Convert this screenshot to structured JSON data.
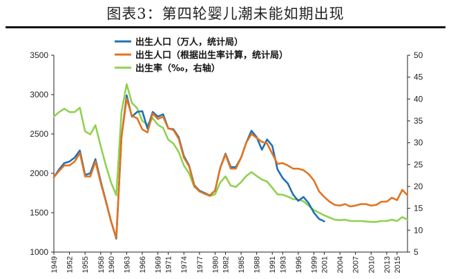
{
  "title": "图表3：第四轮婴儿潮未能如期出现",
  "chart_data": {
    "type": "line",
    "title": "图表3：第四轮婴儿潮未能如期出现",
    "xlabel": "",
    "ylabel_left": "",
    "ylabel_right": "",
    "ylim_left": [
      1000,
      3500
    ],
    "ylim_right": [
      5,
      50
    ],
    "xlim": [
      1949,
      2017
    ],
    "left_ticks": [
      1000,
      1500,
      2000,
      2500,
      3000,
      3500
    ],
    "right_ticks": [
      5,
      10,
      15,
      20,
      25,
      30,
      35,
      40,
      45,
      50
    ],
    "x_ticks": [
      1949,
      1952,
      1955,
      1958,
      1960,
      1963,
      1966,
      1969,
      1971,
      1974,
      1977,
      1980,
      1982,
      1985,
      1988,
      1991,
      1993,
      1996,
      1999,
      2001,
      2004,
      2007,
      2010,
      2013,
      2015
    ],
    "series": [
      {
        "name": "出生人口（万人，统计局）",
        "axis": "left",
        "color": "#1f6fb5",
        "x": [
          1949,
          1950,
          1951,
          1952,
          1953,
          1954,
          1955,
          1956,
          1957,
          1958,
          1959,
          1960,
          1961,
          1962,
          1963,
          1964,
          1965,
          1966,
          1967,
          1968,
          1969,
          1970,
          1971,
          1972,
          1973,
          1974,
          1975,
          1976,
          1977,
          1978,
          1979,
          1980,
          1981,
          1982,
          1983,
          1984,
          1985,
          1986,
          1987,
          1988,
          1989,
          1990,
          1991,
          1992,
          1993,
          1994,
          1995,
          1996,
          1997,
          1998,
          1999,
          2000,
          2001
        ],
        "values": [
          1950,
          2050,
          2130,
          2150,
          2200,
          2290,
          1980,
          2000,
          2180,
          1900,
          1650,
          1390,
          1170,
          2460,
          2990,
          2720,
          2780,
          2790,
          2570,
          2780,
          2720,
          2750,
          2570,
          2560,
          2460,
          2220,
          2100,
          1850,
          1780,
          1750,
          1720,
          1780,
          2070,
          2250,
          2080,
          2080,
          2200,
          2390,
          2540,
          2460,
          2300,
          2430,
          2350,
          2050,
          1940,
          1870,
          1730,
          1650,
          1700,
          1620,
          1500,
          1420,
          1390
        ]
      },
      {
        "name": "出生人口（根据出生率计算，统计局）",
        "axis": "left",
        "color": "#e2731e",
        "x": [
          1949,
          1950,
          1951,
          1952,
          1953,
          1954,
          1955,
          1956,
          1957,
          1958,
          1959,
          1960,
          1961,
          1962,
          1963,
          1964,
          1965,
          1966,
          1967,
          1968,
          1969,
          1970,
          1971,
          1972,
          1973,
          1974,
          1975,
          1976,
          1977,
          1978,
          1979,
          1980,
          1981,
          1982,
          1983,
          1984,
          1985,
          1986,
          1987,
          1988,
          1989,
          1990,
          1991,
          1992,
          1993,
          1994,
          1995,
          1996,
          1997,
          1998,
          1999,
          2000,
          2001,
          2002,
          2003,
          2004,
          2005,
          2006,
          2007,
          2008,
          2009,
          2010,
          2011,
          2012,
          2013,
          2014,
          2015,
          2016,
          2017
        ],
        "values": [
          1950,
          2030,
          2100,
          2100,
          2150,
          2260,
          1960,
          1960,
          2150,
          1880,
          1640,
          1390,
          1180,
          2460,
          2950,
          2730,
          2700,
          2560,
          2520,
          2760,
          2690,
          2720,
          2570,
          2550,
          2440,
          2200,
          2090,
          1840,
          1770,
          1740,
          1720,
          1780,
          2070,
          2240,
          2060,
          2060,
          2200,
          2390,
          2500,
          2450,
          2400,
          2380,
          2250,
          2120,
          2130,
          2100,
          2060,
          2060,
          2040,
          1990,
          1910,
          1770,
          1700,
          1640,
          1600,
          1590,
          1610,
          1580,
          1590,
          1610,
          1610,
          1590,
          1600,
          1640,
          1640,
          1690,
          1660,
          1790,
          1720
        ]
      },
      {
        "name": "出生率（‰，右轴）",
        "axis": "right",
        "color": "#8fd14f",
        "x": [
          1949,
          1950,
          1951,
          1952,
          1953,
          1954,
          1955,
          1956,
          1957,
          1958,
          1959,
          1960,
          1961,
          1962,
          1963,
          1964,
          1965,
          1966,
          1967,
          1968,
          1969,
          1970,
          1971,
          1972,
          1973,
          1974,
          1975,
          1976,
          1977,
          1978,
          1979,
          1980,
          1981,
          1982,
          1983,
          1984,
          1985,
          1986,
          1987,
          1988,
          1989,
          1990,
          1991,
          1992,
          1993,
          1994,
          1995,
          1996,
          1997,
          1998,
          1999,
          2000,
          2001,
          2002,
          2003,
          2004,
          2005,
          2006,
          2007,
          2008,
          2009,
          2010,
          2011,
          2012,
          2013,
          2014,
          2015,
          2016,
          2017
        ],
        "values": [
          36,
          37,
          37.8,
          37,
          37,
          38,
          32.6,
          31.9,
          34,
          29.2,
          24.8,
          20.9,
          18,
          37,
          43.4,
          39.1,
          37.9,
          35,
          34.1,
          35.6,
          34.1,
          33.4,
          30.7,
          29.8,
          27.9,
          24.8,
          23,
          19.9,
          19,
          18.3,
          17.8,
          18.2,
          20.9,
          22.3,
          20.2,
          19.9,
          21,
          22.4,
          23.3,
          22.4,
          21.6,
          21.1,
          19.7,
          18.2,
          18.1,
          17.7,
          17.1,
          17,
          16.6,
          15.6,
          14.6,
          14,
          13.4,
          12.9,
          12.4,
          12.3,
          12.4,
          12.1,
          12.1,
          12.1,
          12,
          11.9,
          11.9,
          12.1,
          12.1,
          12.4,
          12.1,
          13,
          12.4
        ]
      }
    ],
    "legend_position": "top-left"
  }
}
